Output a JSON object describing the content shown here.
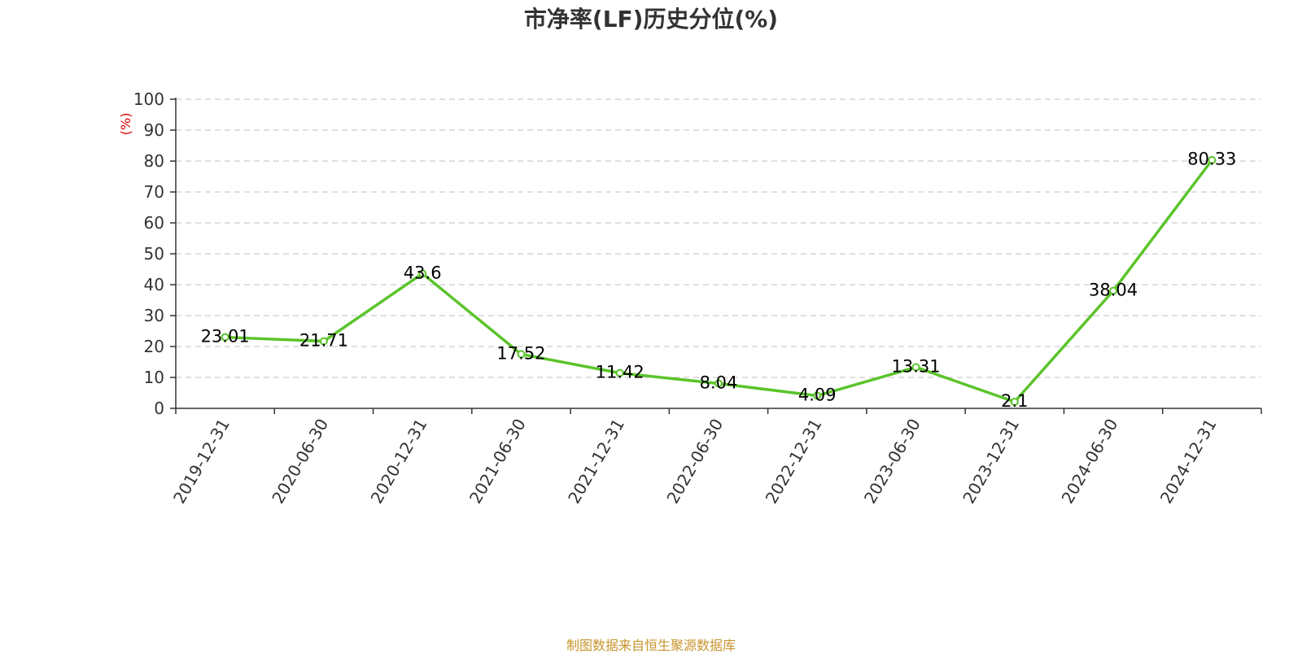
{
  "chart_data": {
    "type": "line",
    "title": "市净率(LF)历史分位(%)",
    "ylabel": "(%)",
    "xlabel": "",
    "ylim": [
      0,
      100
    ],
    "yticks": [
      0,
      10,
      20,
      30,
      40,
      50,
      60,
      70,
      80,
      90,
      100
    ],
    "grid": true,
    "categories": [
      "2019-12-31",
      "2020-06-30",
      "2020-12-31",
      "2021-06-30",
      "2021-12-31",
      "2022-06-30",
      "2022-12-31",
      "2023-06-30",
      "2023-12-31",
      "2024-06-30",
      "2024-12-31"
    ],
    "series": [
      {
        "values": [
          23.01,
          21.71,
          43.6,
          17.52,
          11.42,
          8.04,
          4.09,
          13.31,
          2.1,
          38.04,
          80.33
        ]
      }
    ],
    "line_color": "#5bc42b"
  },
  "footer": {
    "source": "制图数据来自恒生聚源数据库"
  }
}
